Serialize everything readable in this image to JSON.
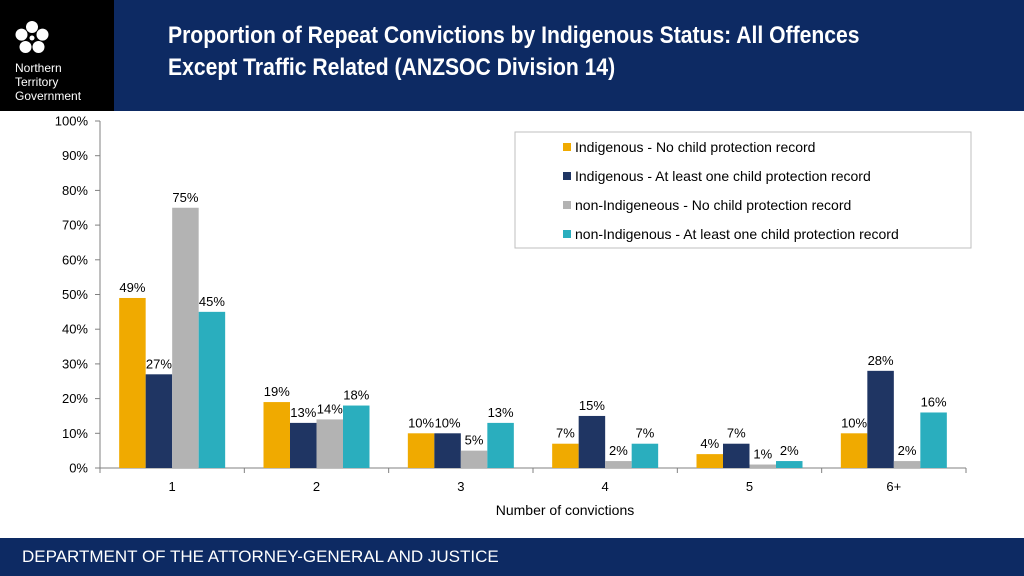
{
  "header": {
    "logo": {
      "icon": "flower-emblem-icon",
      "lines": [
        "Northern",
        "Territory",
        "Government"
      ]
    },
    "title_lines": [
      "Proportion of Repeat Convictions by Indigenous Status: All Offences",
      "Except Traffic Related (ANZSOC Division 14)"
    ]
  },
  "footer": {
    "text": "DEPARTMENT OF THE ATTORNEY-GENERAL AND JUSTICE"
  },
  "colors": {
    "header_bg": "#0d2a63",
    "logo_bg": "#000000"
  },
  "chart_data": {
    "type": "bar",
    "title": "",
    "xlabel": "Number of convictions",
    "ylabel": "",
    "ylim": [
      0,
      100
    ],
    "yticks": [
      "0%",
      "10%",
      "20%",
      "30%",
      "40%",
      "50%",
      "60%",
      "70%",
      "80%",
      "90%",
      "100%"
    ],
    "ytick_values": [
      0,
      10,
      20,
      30,
      40,
      50,
      60,
      70,
      80,
      90,
      100
    ],
    "grid": false,
    "legend_position": "top-right",
    "categories": [
      "1",
      "2",
      "3",
      "4",
      "5",
      "6+"
    ],
    "series": [
      {
        "name": "Indigenous - No child protection record",
        "color": "#f0aa00",
        "values": [
          49,
          19,
          10,
          7,
          4,
          10
        ],
        "labels": [
          "49%",
          "19%",
          "10%",
          "7%",
          "4%",
          "10%"
        ]
      },
      {
        "name": "Indigenous  - At least one child protection record",
        "color": "#1f3563",
        "values": [
          27,
          13,
          10,
          15,
          7,
          28
        ],
        "labels": [
          "27%",
          "13%",
          "10%",
          "15%",
          "7%",
          "28%"
        ]
      },
      {
        "name": "non-Indigeneous - No child protection record",
        "color": "#b3b3b3",
        "values": [
          75,
          14,
          5,
          2,
          1,
          2
        ],
        "labels": [
          "75%",
          "14%",
          "5%",
          "2%",
          "1%",
          "2%"
        ]
      },
      {
        "name": "non-Indigenous - At least one child protection record",
        "color": "#2aaebe",
        "values": [
          45,
          18,
          13,
          7,
          2,
          16
        ],
        "labels": [
          "45%",
          "18%",
          "13%",
          "7%",
          "2%",
          "16%"
        ]
      }
    ]
  }
}
